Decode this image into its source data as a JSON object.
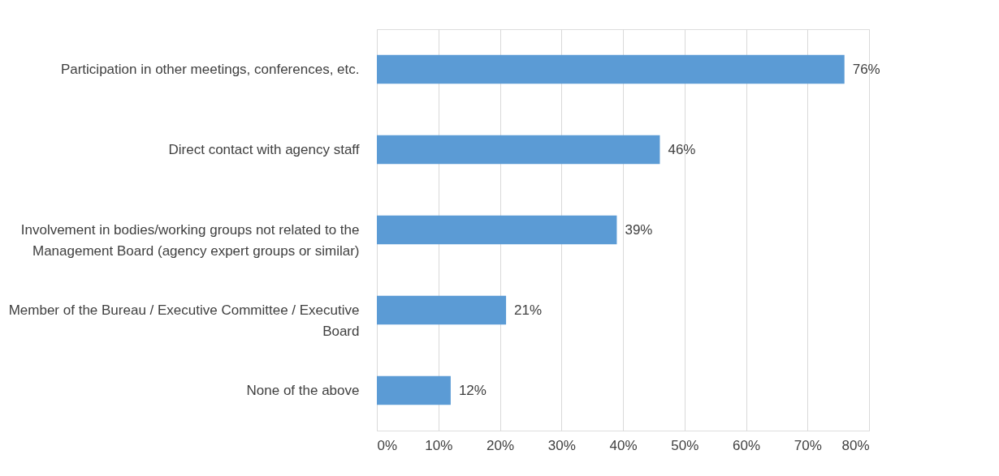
{
  "chart_data": {
    "type": "bar",
    "orientation": "horizontal",
    "categories": [
      "Participation in other meetings, conferences, etc.",
      "Direct contact with agency staff",
      "Involvement in bodies/working groups not related to the\nManagement Board (agency expert groups or similar)",
      "Member of the Bureau / Executive Committee / Executive\nBoard",
      "None of the above"
    ],
    "values": [
      76,
      46,
      39,
      21,
      12
    ],
    "value_labels": [
      "76%",
      "46%",
      "39%",
      "21%",
      "12%"
    ],
    "color": "#5b9bd5",
    "xlim": [
      0,
      80
    ],
    "xticks": [
      {
        "value": 0,
        "label": "0%"
      },
      {
        "value": 10,
        "label": "10%"
      },
      {
        "value": 20,
        "label": "20%"
      },
      {
        "value": 30,
        "label": "30%"
      },
      {
        "value": 40,
        "label": "40%"
      },
      {
        "value": 50,
        "label": "50%"
      },
      {
        "value": 60,
        "label": "60%"
      },
      {
        "value": 70,
        "label": "70%"
      },
      {
        "value": 80,
        "label": "80%"
      }
    ],
    "grid": "x"
  }
}
